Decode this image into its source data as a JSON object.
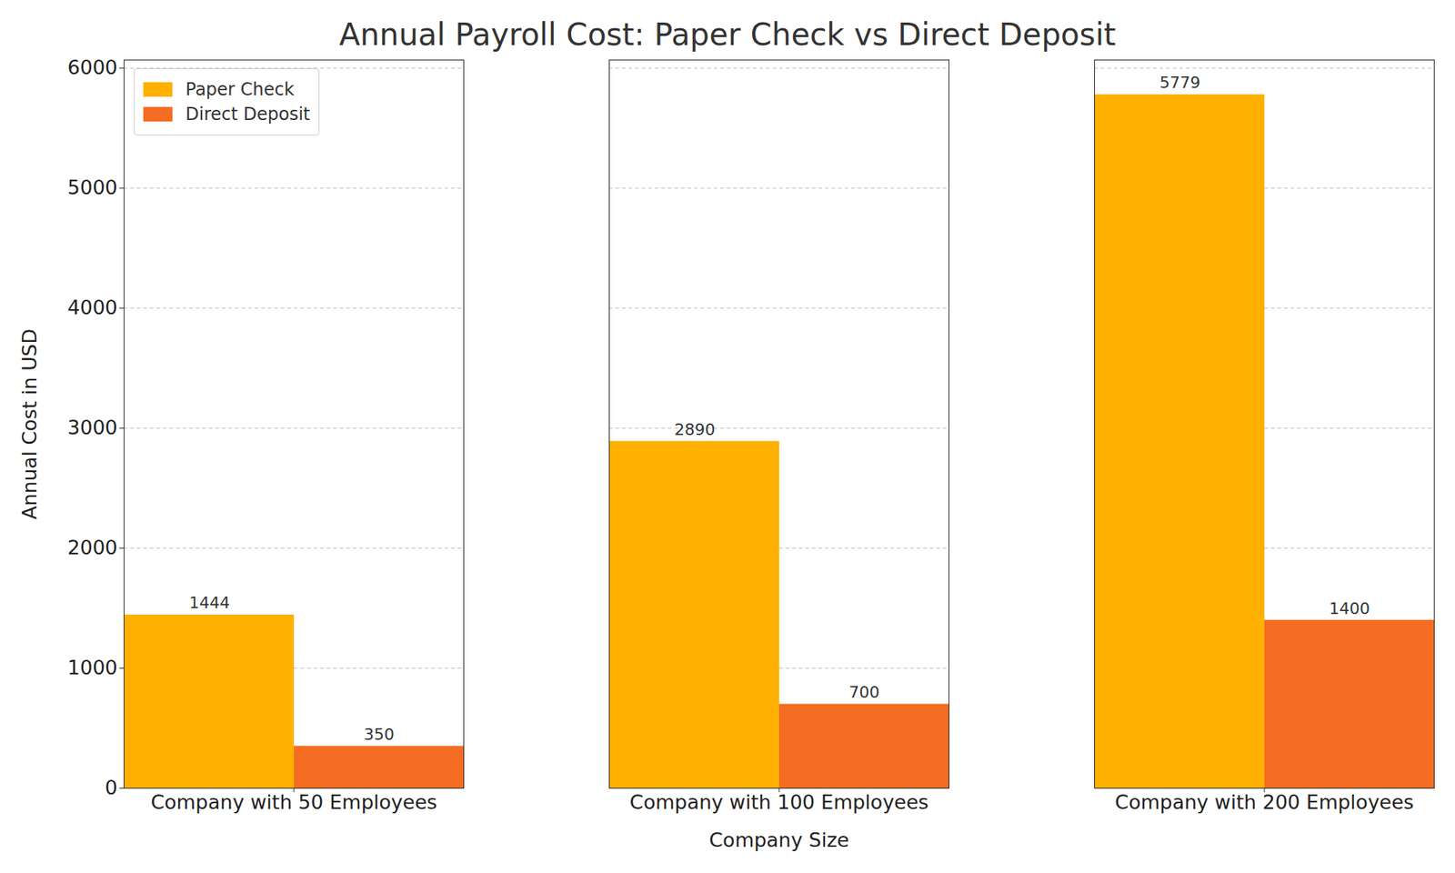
{
  "chart_data": {
    "type": "bar",
    "title": "Annual Payroll Cost: Paper Check vs Direct Deposit",
    "x_label": "Company Size",
    "y_label": "Annual Cost in USD",
    "categories": [
      "Company with 50 Employees",
      "Company with 100 Employees",
      "Company with 200 Employees"
    ],
    "series": [
      {
        "name": "Paper Check",
        "color": "#ffb000",
        "values": [
          1444,
          2890,
          5779
        ]
      },
      {
        "name": "Direct Deposit",
        "color": "#f46d22",
        "values": [
          350,
          700,
          1400
        ]
      }
    ],
    "ylim": [
      0,
      6068
    ],
    "yticks": [
      0,
      1000,
      2000,
      3000,
      4000,
      5000,
      6000
    ],
    "grid": true,
    "legend": "upper left",
    "data_labels": true
  }
}
